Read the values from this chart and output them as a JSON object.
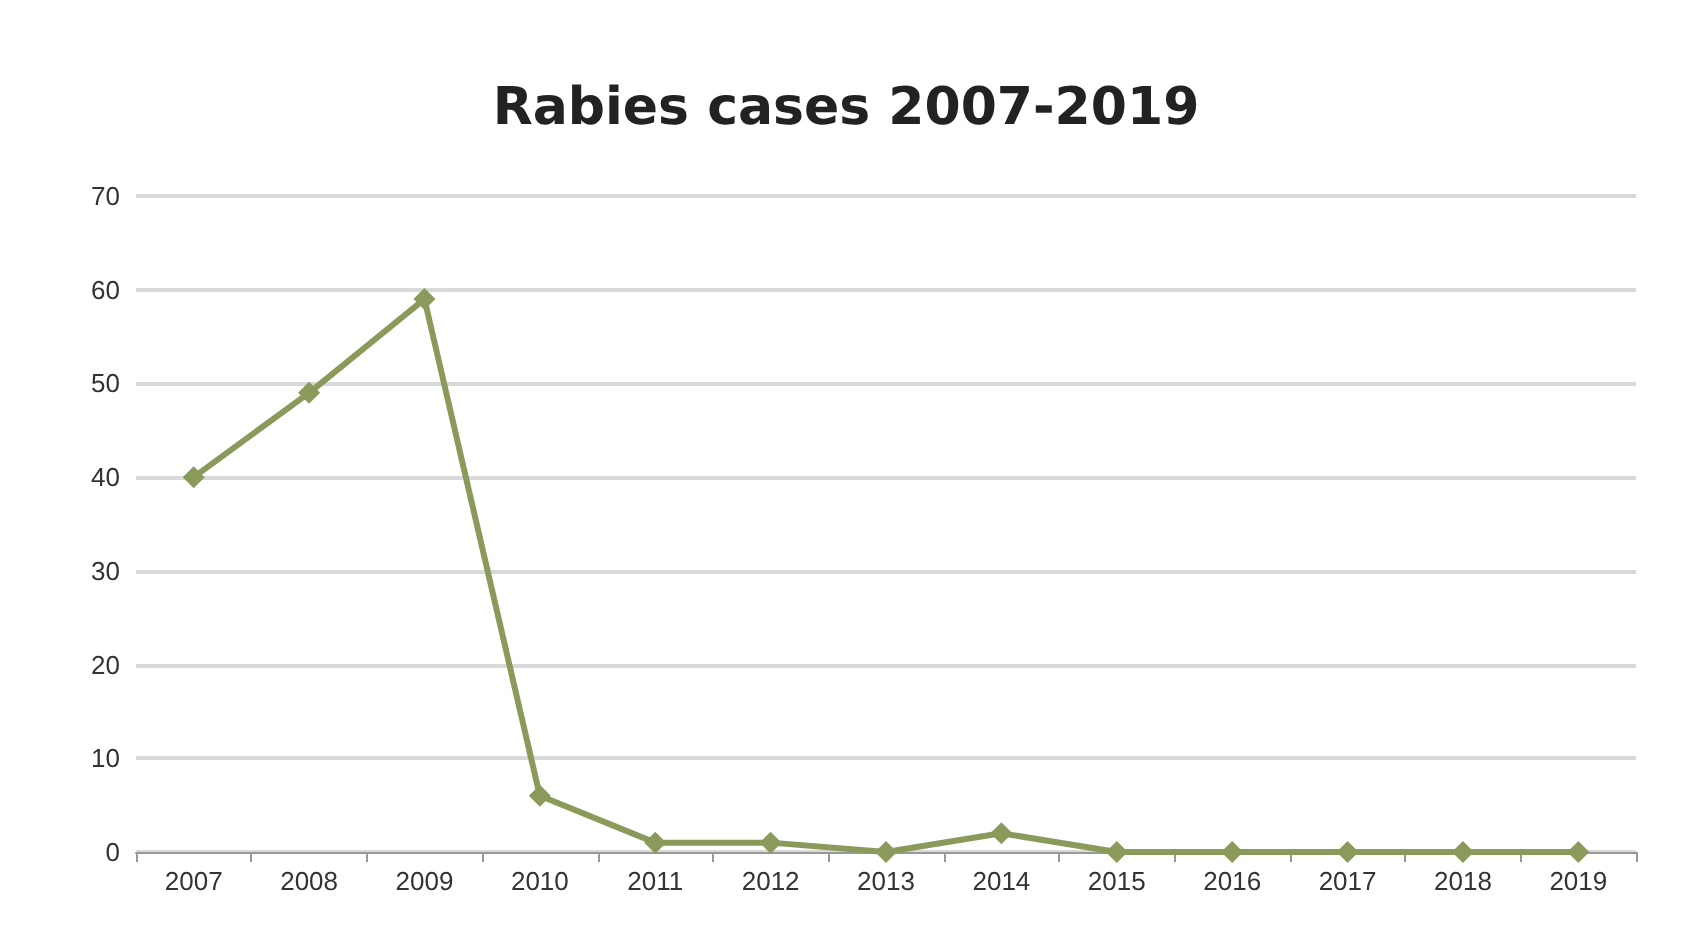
{
  "chart_data": {
    "type": "line",
    "title": "Rabies cases 2007-2019",
    "categories": [
      "2007",
      "2008",
      "2009",
      "2010",
      "2011",
      "2012",
      "2013",
      "2014",
      "2015",
      "2016",
      "2017",
      "2018",
      "2019"
    ],
    "series": [
      {
        "color": "#8a9a5b",
        "values": [
          40,
          49,
          59,
          6,
          1,
          1,
          0,
          2,
          0,
          0,
          0,
          0,
          0
        ]
      }
    ],
    "ylim": [
      0,
      70
    ],
    "yticks": [
      0,
      10,
      20,
      30,
      40,
      50,
      60,
      70
    ],
    "grid": "y",
    "marker": "diamond",
    "line_style": "solid"
  }
}
